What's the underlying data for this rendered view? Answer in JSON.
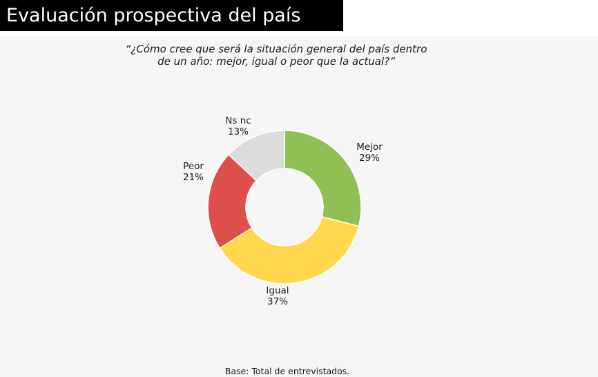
{
  "header": {
    "title": "Evaluación prospectiva del país"
  },
  "question": {
    "line1": "“¿Cómo cree que será la situación general del país dentro",
    "line2": "de un año: mejor, igual o peor que la actual?”"
  },
  "footer": {
    "base": "Base: Total de entrevistados."
  },
  "chart_data": {
    "type": "pie",
    "donut": true,
    "unit": "%",
    "categories": [
      "Mejor",
      "Igual",
      "Peor",
      "Ns nc"
    ],
    "values": [
      29,
      37,
      21,
      13
    ],
    "value_labels": [
      "29%",
      "37%",
      "21%",
      "13%"
    ],
    "colors": [
      "#8fbf55",
      "#ffd84d",
      "#de4f4b",
      "#dcdcdc"
    ]
  }
}
